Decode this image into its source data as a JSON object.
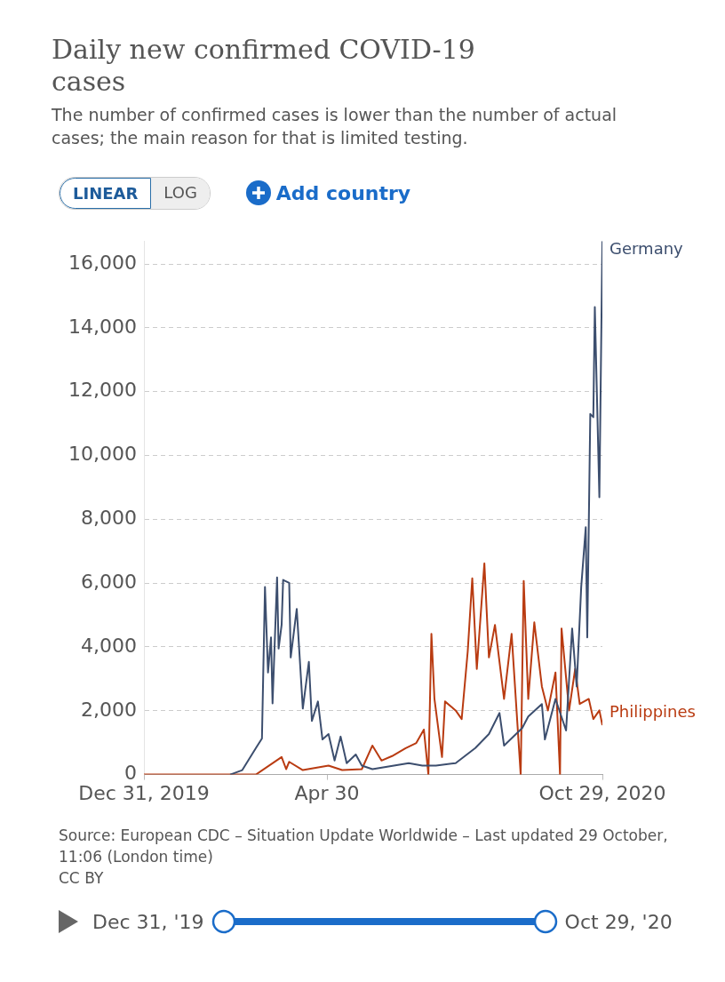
{
  "chart_data": {
    "type": "line",
    "title": "Daily new confirmed COVID-19 cases",
    "subtitle": "The number of confirmed cases is lower than the number of actual cases; the main reason for that is limited testing.",
    "xlim": [
      "2019-12-31",
      "2020-10-29"
    ],
    "xticks": [
      {
        "value": "2019-12-31",
        "label": "Dec 31, 2019"
      },
      {
        "value": "2020-04-30",
        "label": "Apr 30"
      },
      {
        "value": "2020-10-29",
        "label": "Oct 29, 2020"
      }
    ],
    "ylim": [
      0,
      16720
    ],
    "yticks": [
      0,
      {
        "value": 2000,
        "label": "2,000"
      },
      {
        "value": 4000,
        "label": "4,000"
      },
      {
        "value": 6000,
        "label": "6,000"
      },
      {
        "value": 8000,
        "label": "8,000"
      },
      {
        "value": 10000,
        "label": "10,000"
      },
      {
        "value": 12000,
        "label": "12,000"
      },
      {
        "value": 14000,
        "label": "14,000"
      },
      {
        "value": 16000,
        "label": "16,000"
      }
    ],
    "grid": "y",
    "series": [
      {
        "name": "Germany",
        "color": "#3c4e6e",
        "x": [
          "2020-02-26",
          "2020-03-05",
          "2020-03-14",
          "2020-03-18",
          "2020-03-20",
          "2020-03-22",
          "2020-03-24",
          "2020-03-25",
          "2020-03-28",
          "2020-03-29",
          "2020-03-31",
          "2020-04-01",
          "2020-04-05",
          "2020-04-06",
          "2020-04-10",
          "2020-04-14",
          "2020-04-18",
          "2020-04-20",
          "2020-04-24",
          "2020-04-27",
          "2020-05-01",
          "2020-05-05",
          "2020-05-09",
          "2020-05-13",
          "2020-05-19",
          "2020-05-23",
          "2020-05-30",
          "2020-06-23",
          "2020-07-02",
          "2020-07-11",
          "2020-07-24",
          "2020-08-06",
          "2020-08-15",
          "2020-08-22",
          "2020-08-25",
          "2020-09-06",
          "2020-09-10",
          "2020-09-19",
          "2020-09-21",
          "2020-09-28",
          "2020-10-05",
          "2020-10-09",
          "2020-10-12",
          "2020-10-15",
          "2020-10-18",
          "2020-10-19",
          "2020-10-21",
          "2020-10-23",
          "2020-10-24",
          "2020-10-27",
          "2020-10-29"
        ],
        "values": [
          0,
          140,
          830,
          1130,
          5880,
          3200,
          4300,
          2230,
          6180,
          3950,
          4690,
          6100,
          6010,
          3670,
          5190,
          2070,
          3530,
          1680,
          2290,
          1100,
          1270,
          440,
          1190,
          360,
          630,
          280,
          170,
          360,
          280,
          280,
          360,
          830,
          1270,
          1930,
          910,
          1460,
          1820,
          2210,
          1100,
          2370,
          1380,
          4580,
          2760,
          5880,
          7750,
          4300,
          11300,
          11200,
          14650,
          8690,
          16720
        ]
      },
      {
        "name": "Philippines",
        "color": "#b93b11",
        "x": [
          "2019-12-31",
          "2020-03-14",
          "2020-03-31",
          "2020-04-03",
          "2020-04-05",
          "2020-04-14",
          "2020-05-01",
          "2020-05-10",
          "2020-05-23",
          "2020-05-30",
          "2020-06-05",
          "2020-06-12",
          "2020-06-21",
          "2020-06-28",
          "2020-07-03",
          "2020-07-06",
          "2020-07-08",
          "2020-07-10",
          "2020-07-13",
          "2020-07-15",
          "2020-07-17",
          "2020-07-24",
          "2020-07-28",
          "2020-08-01",
          "2020-08-04",
          "2020-08-07",
          "2020-08-12",
          "2020-08-15",
          "2020-08-19",
          "2020-08-25",
          "2020-08-30",
          "2020-09-05",
          "2020-09-07",
          "2020-09-10",
          "2020-09-14",
          "2020-09-19",
          "2020-09-23",
          "2020-09-28",
          "2020-10-01",
          "2020-10-02",
          "2020-10-07",
          "2020-10-11",
          "2020-10-14",
          "2020-10-20",
          "2020-10-23",
          "2020-10-27",
          "2020-10-29"
        ],
        "values": [
          0,
          0,
          550,
          170,
          400,
          140,
          280,
          140,
          170,
          910,
          440,
          580,
          830,
          990,
          1410,
          0,
          4410,
          2370,
          1270,
          550,
          2290,
          2010,
          1740,
          3860,
          6150,
          3310,
          6620,
          3670,
          4690,
          2370,
          4410,
          0,
          6070,
          2370,
          4770,
          2760,
          2010,
          3200,
          0,
          4580,
          2010,
          3310,
          2210,
          2370,
          1740,
          2010,
          1550
        ]
      }
    ],
    "annotations": [
      "LINEAR",
      "LOG",
      "Add country",
      "Source: European CDC – Situation Update Worldwide – Last updated 29 October, 11:06 (London time)",
      "CC BY",
      "Dec 31, '19",
      "Oct 29, '20"
    ]
  }
}
